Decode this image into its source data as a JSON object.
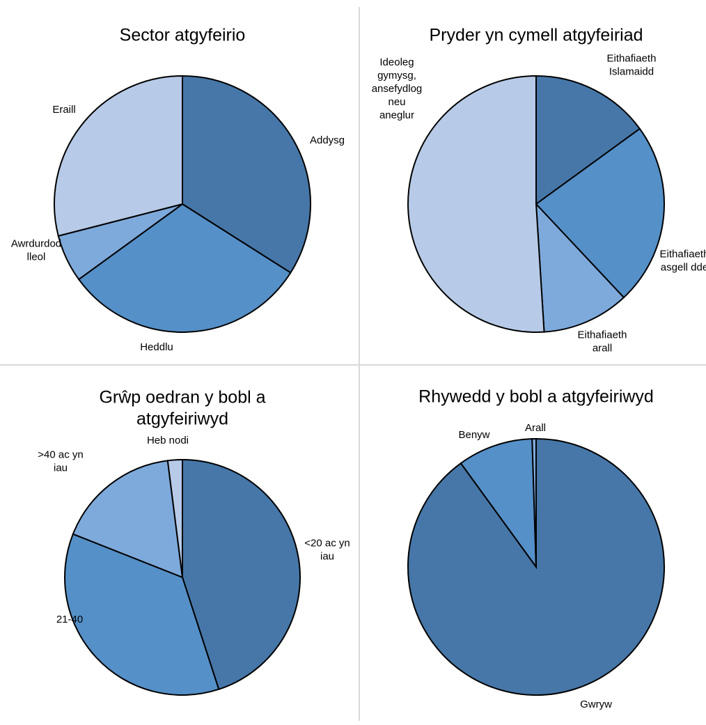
{
  "chart_data": [
    {
      "type": "pie",
      "title": "Sector atgyfeirio",
      "slices": [
        {
          "label": [
            "Addysg"
          ],
          "value": 34,
          "color": "#4677a8"
        },
        {
          "label": [
            "Heddlu"
          ],
          "value": 31,
          "color": "#5590c8"
        },
        {
          "label": [
            "Awrdurdod",
            "lleol"
          ],
          "value": 6,
          "color": "#7ea9db"
        },
        {
          "label": [
            "Eraill"
          ],
          "value": 29,
          "color": "#b7cbe8"
        }
      ]
    },
    {
      "type": "pie",
      "title": "Pryder yn cymell atgyfeiriad",
      "slices": [
        {
          "label": [
            "Eithafiaeth",
            "Islamaidd"
          ],
          "value": 15,
          "color": "#4677a8"
        },
        {
          "label": [
            "Eithafiaeth",
            "asgell dde"
          ],
          "value": 23,
          "color": "#5590c8"
        },
        {
          "label": [
            "Eithafiaeth",
            "arall"
          ],
          "value": 11,
          "color": "#7ea9db"
        },
        {
          "label": [
            "Ideoleg",
            "gymysg,",
            "ansefydlog",
            "neu",
            "aneglur"
          ],
          "value": 51,
          "color": "#b7cbe8"
        }
      ]
    },
    {
      "type": "pie",
      "title": [
        "Grŵp oedran y bobl a",
        "atgyfeiriwyd"
      ],
      "slices": [
        {
          "label": [
            "<20 ac yn",
            "iau"
          ],
          "value": 45,
          "color": "#4677a8"
        },
        {
          "label": [
            "21-40"
          ],
          "value": 36,
          "color": "#5590c8"
        },
        {
          "label": [
            ">40 ac yn",
            "iau"
          ],
          "value": 17,
          "color": "#7ea9db"
        },
        {
          "label": [
            "Heb nodi"
          ],
          "value": 2,
          "color": "#b7cbe8"
        }
      ]
    },
    {
      "type": "pie",
      "title": "Rhywedd y bobl a atgyfeiriwyd",
      "slices": [
        {
          "label": [
            "Gwryw"
          ],
          "value": 90,
          "color": "#4677a8"
        },
        {
          "label": [
            "Benyw"
          ],
          "value": 9.5,
          "color": "#5590c8"
        },
        {
          "label": [
            "Arall"
          ],
          "value": 0.5,
          "color": "#7ea9db"
        }
      ]
    }
  ]
}
